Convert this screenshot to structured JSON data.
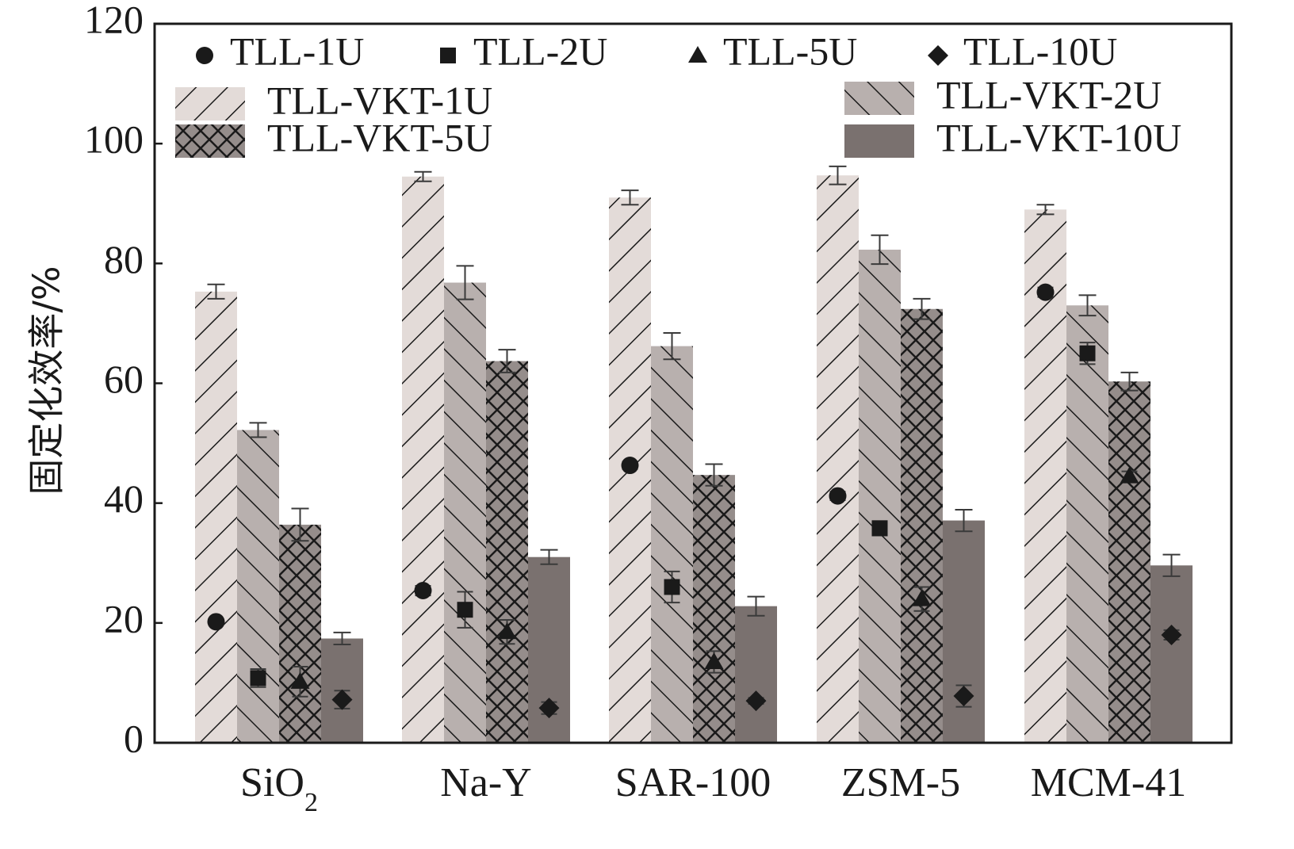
{
  "chart_data": {
    "type": "bar",
    "title": "",
    "xlabel": "",
    "ylabel": "固定化效率/%",
    "ylim": [
      0,
      120
    ],
    "yticks": [
      0,
      20,
      40,
      60,
      80,
      100,
      120
    ],
    "categories": [
      "SiO",
      "Na-Y",
      "SAR-100",
      "ZSM-5",
      "MCM-41"
    ],
    "category_subscripts": [
      "2",
      "",
      "",
      "",
      ""
    ],
    "grid": false,
    "legend_position": "top",
    "bar_series": [
      {
        "name": "TLL-VKT-1U",
        "values": [
          75.3,
          94.5,
          91.0,
          94.7,
          89.0
        ],
        "errors": [
          1.2,
          0.8,
          1.2,
          1.5,
          0.8
        ],
        "fill": "#e3dbd8",
        "pattern": "diag-forward"
      },
      {
        "name": "TLL-VKT-2U",
        "values": [
          52.2,
          76.8,
          66.2,
          82.3,
          73.0
        ],
        "errors": [
          1.2,
          2.8,
          2.2,
          2.4,
          1.7
        ],
        "fill": "#b8b0ae",
        "pattern": "diag-back"
      },
      {
        "name": "TLL-VKT-5U",
        "values": [
          36.4,
          63.7,
          44.7,
          72.4,
          60.3
        ],
        "errors": [
          2.7,
          1.9,
          1.8,
          1.7,
          1.5
        ],
        "fill": "#958d8b",
        "pattern": "crosshatch"
      },
      {
        "name": "TLL-VKT-10U",
        "values": [
          17.4,
          31.0,
          22.8,
          37.1,
          29.6
        ],
        "errors": [
          1.0,
          1.2,
          1.6,
          1.8,
          1.8
        ],
        "fill": "#7a716f",
        "pattern": "solid"
      }
    ],
    "point_series": [
      {
        "name": "TLL-1U",
        "marker": "circle",
        "values": [
          20.2,
          25.4,
          46.3,
          41.2,
          75.2
        ],
        "errors": [
          0.5,
          0.8,
          0.6,
          0.7,
          0.8
        ]
      },
      {
        "name": "TLL-2U",
        "marker": "square",
        "values": [
          10.8,
          22.2,
          26.0,
          35.8,
          65.0
        ],
        "errors": [
          1.5,
          3.0,
          2.6,
          1.2,
          1.8
        ]
      },
      {
        "name": "TLL-5U",
        "marker": "triangle",
        "values": [
          10.2,
          18.5,
          13.5,
          24.0,
          44.5
        ],
        "errors": [
          2.5,
          2.0,
          1.8,
          2.0,
          0.8
        ]
      },
      {
        "name": "TLL-10U",
        "marker": "diamond",
        "values": [
          7.2,
          5.8,
          7.0,
          7.8,
          18.0
        ],
        "errors": [
          1.5,
          1.0,
          0.5,
          1.8,
          0.8
        ]
      }
    ]
  }
}
